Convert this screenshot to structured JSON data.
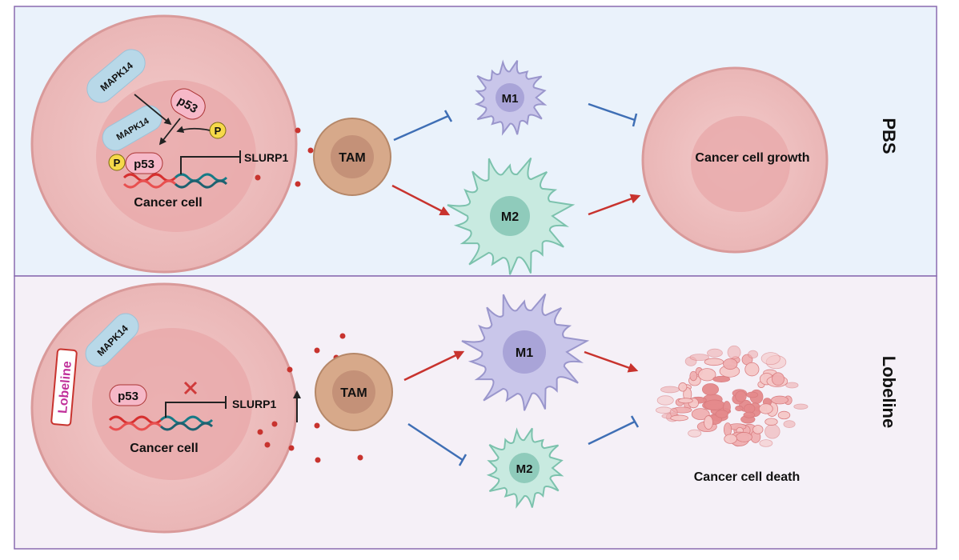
{
  "panels": [
    {
      "label": "PBS",
      "background": "#eaf2fb",
      "cancer_cell": {
        "label": "Cancer cell",
        "mapk14_a": "MAPK14",
        "mapk14_b": "MAPK14",
        "p53_a": "p53",
        "p53_b": "p53",
        "phospho_a": "P",
        "phospho_b": "P",
        "gene": "SLURP1"
      },
      "tam": "TAM",
      "m1": "M1",
      "m2": "M2",
      "outcome": "Cancer cell growth"
    },
    {
      "label": "Lobeline",
      "background": "#f5f0f7",
      "cancer_cell": {
        "label": "Cancer cell",
        "drug": "Lobeline",
        "mapk14": "MAPK14",
        "p53": "p53",
        "gene": "SLURP1"
      },
      "tam": "TAM",
      "m1": "M1",
      "m2": "M2",
      "outcome": "Cancer cell death"
    }
  ],
  "colors": {
    "border": "#8a6bb0",
    "activation": "#c8332e",
    "inhibition": "#3f6fb5",
    "m1": "#c9c6ea",
    "m2": "#c8eae0",
    "tam": "#d7a98a",
    "cancer": "#f1c4c4"
  }
}
